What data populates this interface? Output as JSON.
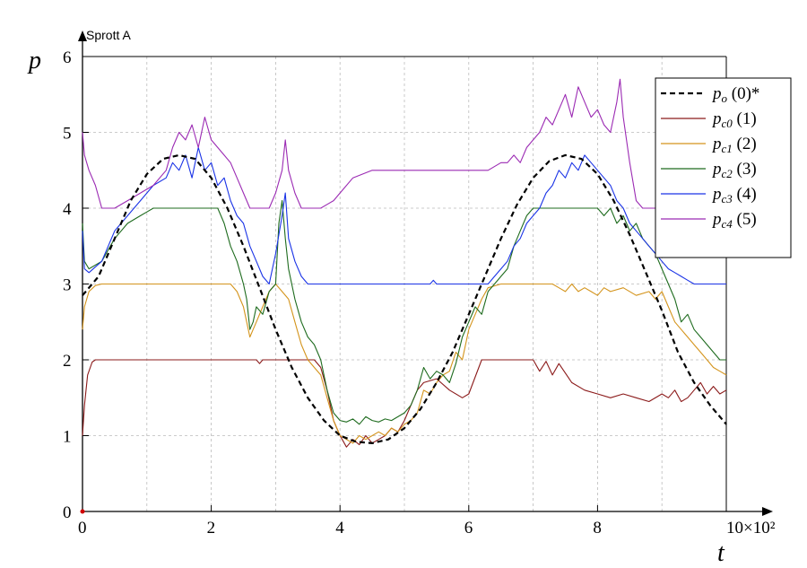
{
  "chart_data": {
    "type": "line",
    "title": "Sprott A",
    "xlabel": "t",
    "ylabel": "p",
    "x_multiplier": "10×10²",
    "xlim": [
      0,
      10
    ],
    "ylim": [
      0,
      6
    ],
    "x_ticks": [
      "0",
      "2",
      "4",
      "6",
      "8"
    ],
    "y_ticks": [
      "0",
      "1",
      "2",
      "3",
      "4",
      "5",
      "6"
    ],
    "grid": true,
    "legend_position": "top-right",
    "series": [
      {
        "name": "p_o (0)*",
        "symbol": "p",
        "sub": "o",
        "label": "(0)*",
        "color": "#000000",
        "dash": true,
        "x": [
          0,
          0.25,
          0.5,
          0.75,
          1.0,
          1.25,
          1.5,
          1.75,
          2.0,
          2.25,
          2.5,
          2.75,
          3.0,
          3.25,
          3.5,
          3.75,
          4.0,
          4.25,
          4.5,
          4.75,
          5.0,
          5.25,
          5.5,
          5.75,
          6.0,
          6.25,
          6.5,
          6.75,
          7.0,
          7.25,
          7.5,
          7.75,
          8.0,
          8.25,
          8.5,
          8.75,
          9.0,
          9.25,
          9.5,
          9.75,
          10.0
        ],
        "y": [
          2.85,
          3.1,
          3.6,
          4.1,
          4.45,
          4.65,
          4.7,
          4.65,
          4.4,
          4.0,
          3.5,
          2.95,
          2.4,
          1.9,
          1.5,
          1.2,
          1.0,
          0.92,
          0.9,
          0.95,
          1.1,
          1.35,
          1.7,
          2.1,
          2.6,
          3.1,
          3.6,
          4.05,
          4.4,
          4.62,
          4.7,
          4.65,
          4.45,
          4.1,
          3.65,
          3.15,
          2.65,
          2.1,
          1.7,
          1.4,
          1.15
        ]
      },
      {
        "name": "p_c0 (1)",
        "symbol": "p",
        "sub": "c0",
        "label": "(1)",
        "color": "#8b1a1a",
        "dash": false,
        "x": [
          0,
          0.03,
          0.08,
          0.15,
          0.2,
          0.3,
          0.5,
          1.0,
          2.0,
          2.7,
          2.75,
          2.8,
          3.0,
          3.6,
          3.7,
          3.8,
          3.9,
          4.0,
          4.1,
          4.2,
          4.3,
          4.4,
          4.5,
          4.6,
          4.7,
          4.8,
          4.9,
          5.0,
          5.1,
          5.2,
          5.3,
          5.5,
          5.7,
          5.9,
          6.0,
          6.2,
          6.5,
          6.8,
          7.0,
          7.1,
          7.2,
          7.3,
          7.4,
          7.6,
          7.8,
          8.0,
          8.2,
          8.4,
          8.6,
          8.8,
          9.0,
          9.1,
          9.2,
          9.3,
          9.4,
          9.5,
          9.6,
          9.7,
          9.8,
          9.9,
          10.0
        ],
        "y": [
          1.0,
          1.4,
          1.8,
          1.97,
          2.0,
          2.0,
          2.0,
          2.0,
          2.0,
          2.0,
          1.95,
          2.0,
          2.0,
          2.0,
          1.9,
          1.6,
          1.2,
          1.0,
          0.85,
          0.95,
          0.88,
          1.0,
          0.9,
          0.95,
          1.0,
          1.1,
          1.05,
          1.2,
          1.4,
          1.6,
          1.7,
          1.75,
          1.6,
          1.5,
          1.55,
          2.0,
          2.0,
          2.0,
          2.0,
          1.85,
          1.98,
          1.8,
          1.95,
          1.7,
          1.6,
          1.55,
          1.5,
          1.55,
          1.5,
          1.45,
          1.55,
          1.5,
          1.6,
          1.45,
          1.5,
          1.6,
          1.7,
          1.55,
          1.65,
          1.55,
          1.6
        ]
      },
      {
        "name": "p_c1 (2)",
        "symbol": "p",
        "sub": "c1",
        "label": "(2)",
        "color": "#d4941c",
        "dash": false,
        "x": [
          0,
          0.03,
          0.1,
          0.2,
          0.3,
          1.0,
          2.0,
          2.3,
          2.4,
          2.5,
          2.55,
          2.6,
          2.65,
          2.7,
          2.8,
          2.9,
          3.0,
          3.1,
          3.2,
          3.3,
          3.4,
          3.5,
          3.6,
          3.7,
          3.8,
          3.9,
          4.0,
          4.1,
          4.2,
          4.3,
          4.4,
          4.5,
          4.6,
          4.7,
          4.8,
          4.9,
          5.0,
          5.1,
          5.2,
          5.3,
          5.4,
          5.5,
          5.6,
          5.7,
          5.8,
          5.9,
          6.0,
          6.1,
          6.2,
          6.3,
          6.5,
          7.0,
          7.3,
          7.4,
          7.5,
          7.6,
          7.7,
          7.8,
          7.9,
          8.0,
          8.1,
          8.2,
          8.4,
          8.6,
          8.8,
          8.9,
          9.0,
          9.1,
          9.2,
          9.3,
          9.4,
          9.5,
          9.6,
          9.7,
          9.8,
          9.9,
          10.0
        ],
        "y": [
          2.4,
          2.7,
          2.9,
          2.98,
          3.0,
          3.0,
          3.0,
          3.0,
          2.9,
          2.7,
          2.5,
          2.3,
          2.4,
          2.5,
          2.7,
          2.9,
          3.0,
          2.9,
          2.8,
          2.5,
          2.2,
          2.0,
          1.9,
          1.8,
          1.5,
          1.2,
          1.0,
          0.95,
          0.9,
          1.0,
          0.95,
          1.0,
          1.05,
          1.0,
          1.1,
          1.05,
          1.15,
          1.2,
          1.3,
          1.6,
          1.55,
          1.7,
          1.8,
          1.85,
          2.1,
          2.0,
          2.4,
          2.6,
          2.8,
          2.95,
          3.0,
          3.0,
          3.0,
          2.95,
          2.9,
          3.0,
          2.9,
          2.95,
          2.9,
          2.85,
          2.95,
          2.9,
          2.95,
          2.85,
          2.9,
          2.8,
          2.9,
          2.7,
          2.5,
          2.4,
          2.3,
          2.2,
          2.1,
          2.0,
          1.9,
          1.85,
          1.8
        ]
      },
      {
        "name": "p_c2 (3)",
        "symbol": "p",
        "sub": "c2",
        "label": "(3)",
        "color": "#1e6b1e",
        "dash": false,
        "x": [
          0,
          0.03,
          0.1,
          0.3,
          0.5,
          0.7,
          0.9,
          1.0,
          1.1,
          1.2,
          1.5,
          2.0,
          2.1,
          2.15,
          2.2,
          2.3,
          2.4,
          2.5,
          2.55,
          2.6,
          2.65,
          2.7,
          2.8,
          2.9,
          3.0,
          3.05,
          3.1,
          3.15,
          3.2,
          3.3,
          3.4,
          3.5,
          3.6,
          3.7,
          3.8,
          3.9,
          4.0,
          4.1,
          4.2,
          4.3,
          4.4,
          4.5,
          4.6,
          4.7,
          4.8,
          4.9,
          5.0,
          5.1,
          5.2,
          5.3,
          5.4,
          5.5,
          5.6,
          5.7,
          5.8,
          5.9,
          6.0,
          6.1,
          6.2,
          6.3,
          6.4,
          6.5,
          6.6,
          6.7,
          6.8,
          6.9,
          7.0,
          7.5,
          8.0,
          8.1,
          8.2,
          8.3,
          8.4,
          8.5,
          8.6,
          8.7,
          8.8,
          8.9,
          9.0,
          9.1,
          9.2,
          9.3,
          9.4,
          9.5,
          9.6,
          9.7,
          9.8,
          9.9,
          10.0
        ],
        "y": [
          3.8,
          3.3,
          3.2,
          3.3,
          3.6,
          3.8,
          3.9,
          3.95,
          4.0,
          4.0,
          4.0,
          4.0,
          4.0,
          3.9,
          3.8,
          3.5,
          3.3,
          3.0,
          2.8,
          2.4,
          2.5,
          2.7,
          2.6,
          2.9,
          3.0,
          3.8,
          4.1,
          3.6,
          3.2,
          2.8,
          2.5,
          2.3,
          2.2,
          2.0,
          1.6,
          1.3,
          1.2,
          1.18,
          1.22,
          1.15,
          1.25,
          1.2,
          1.18,
          1.22,
          1.2,
          1.25,
          1.3,
          1.4,
          1.6,
          1.9,
          1.75,
          1.85,
          1.8,
          1.7,
          1.95,
          2.3,
          2.5,
          2.7,
          2.6,
          2.9,
          3.0,
          3.1,
          3.2,
          3.5,
          3.7,
          3.9,
          4.0,
          4.0,
          4.0,
          3.9,
          4.0,
          3.8,
          3.9,
          3.7,
          3.8,
          3.6,
          3.5,
          3.4,
          3.2,
          3.0,
          2.8,
          2.5,
          2.6,
          2.4,
          2.3,
          2.2,
          2.1,
          2.0,
          2.0
        ]
      },
      {
        "name": "p_c3 (4)",
        "symbol": "p",
        "sub": "c3",
        "label": "(4)",
        "color": "#1a33e6",
        "dash": false,
        "x": [
          0,
          0.03,
          0.1,
          0.3,
          0.5,
          0.7,
          0.9,
          1.1,
          1.3,
          1.4,
          1.5,
          1.6,
          1.7,
          1.8,
          1.9,
          2.0,
          2.1,
          2.2,
          2.3,
          2.4,
          2.5,
          2.6,
          2.7,
          2.8,
          2.9,
          3.0,
          3.1,
          3.15,
          3.2,
          3.3,
          3.4,
          3.5,
          4.0,
          5.0,
          5.4,
          5.45,
          5.5,
          6.0,
          6.3,
          6.4,
          6.5,
          6.6,
          6.7,
          6.8,
          6.9,
          7.0,
          7.1,
          7.2,
          7.3,
          7.4,
          7.5,
          7.6,
          7.7,
          7.8,
          7.9,
          8.0,
          8.1,
          8.2,
          8.3,
          8.4,
          8.5,
          8.6,
          8.7,
          8.8,
          8.9,
          9.0,
          9.1,
          9.2,
          9.3,
          9.4,
          9.5,
          9.7,
          10.0
        ],
        "y": [
          3.7,
          3.2,
          3.15,
          3.3,
          3.7,
          3.9,
          4.1,
          4.3,
          4.4,
          4.6,
          4.5,
          4.7,
          4.4,
          4.8,
          4.5,
          4.6,
          4.3,
          4.4,
          4.1,
          3.9,
          3.8,
          3.5,
          3.3,
          3.1,
          3.0,
          3.4,
          3.9,
          4.2,
          3.6,
          3.3,
          3.1,
          3.0,
          3.0,
          3.0,
          3.0,
          3.05,
          3.0,
          3.0,
          3.0,
          3.1,
          3.2,
          3.3,
          3.5,
          3.6,
          3.8,
          3.9,
          4.0,
          4.2,
          4.3,
          4.5,
          4.4,
          4.6,
          4.5,
          4.7,
          4.6,
          4.5,
          4.4,
          4.3,
          4.1,
          4.0,
          3.8,
          3.7,
          3.6,
          3.5,
          3.4,
          3.3,
          3.2,
          3.15,
          3.1,
          3.05,
          3.0,
          3.0,
          3.0
        ]
      },
      {
        "name": "p_c4 (5)",
        "symbol": "p",
        "sub": "c4",
        "label": "(5)",
        "color": "#9b2ab3",
        "dash": false,
        "x": [
          0,
          0.03,
          0.1,
          0.2,
          0.3,
          0.4,
          0.5,
          0.7,
          0.9,
          1.1,
          1.3,
          1.4,
          1.5,
          1.6,
          1.7,
          1.8,
          1.9,
          2.0,
          2.1,
          2.2,
          2.3,
          2.4,
          2.5,
          2.6,
          2.7,
          2.8,
          2.9,
          3.0,
          3.1,
          3.15,
          3.2,
          3.3,
          3.4,
          3.5,
          3.6,
          3.7,
          3.8,
          3.9,
          4.0,
          4.2,
          4.5,
          5.0,
          5.5,
          6.0,
          6.3,
          6.5,
          6.6,
          6.7,
          6.8,
          6.9,
          7.0,
          7.1,
          7.2,
          7.3,
          7.4,
          7.5,
          7.6,
          7.7,
          7.8,
          7.9,
          8.0,
          8.1,
          8.2,
          8.3,
          8.35,
          8.4,
          8.5,
          8.6,
          8.7,
          8.8,
          8.9,
          9.0,
          9.1,
          9.2,
          9.3,
          10.0
        ],
        "y": [
          5.0,
          4.7,
          4.5,
          4.3,
          4.0,
          4.0,
          4.0,
          4.1,
          4.2,
          4.3,
          4.5,
          4.8,
          5.0,
          4.9,
          5.1,
          4.8,
          5.2,
          4.9,
          4.8,
          4.7,
          4.6,
          4.4,
          4.2,
          4.0,
          4.0,
          4.0,
          4.0,
          4.2,
          4.5,
          4.9,
          4.5,
          4.2,
          4.0,
          4.0,
          4.0,
          4.0,
          4.05,
          4.1,
          4.2,
          4.4,
          4.5,
          4.5,
          4.5,
          4.5,
          4.5,
          4.6,
          4.6,
          4.7,
          4.6,
          4.8,
          4.9,
          5.0,
          5.2,
          5.1,
          5.3,
          5.5,
          5.2,
          5.6,
          5.4,
          5.2,
          5.3,
          5.1,
          5.0,
          5.4,
          5.7,
          5.2,
          4.6,
          4.1,
          4.0,
          4.0,
          4.0,
          4.0,
          3.8,
          3.6,
          3.5,
          3.5
        ]
      }
    ]
  }
}
